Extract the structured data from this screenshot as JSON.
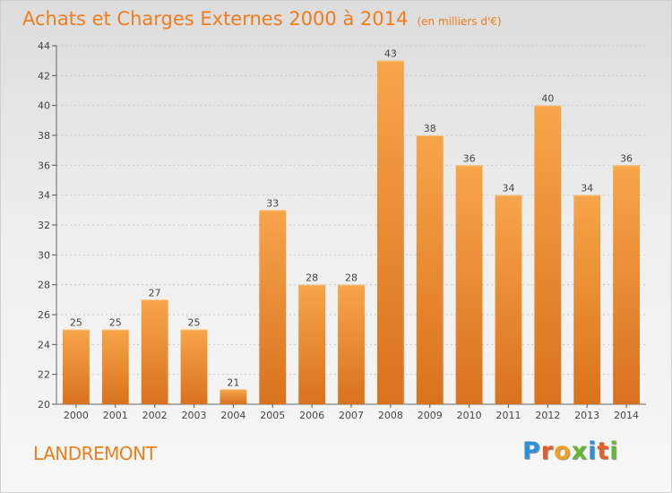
{
  "chart_data": {
    "type": "bar",
    "title": "Achats et Charges Externes 2000 à 2014",
    "subtitle": "(en milliers d'€)",
    "categories": [
      "2000",
      "2001",
      "2002",
      "2003",
      "2004",
      "2005",
      "2006",
      "2007",
      "2008",
      "2009",
      "2010",
      "2011",
      "2012",
      "2013",
      "2014"
    ],
    "values": [
      25,
      25,
      27,
      25,
      21,
      33,
      28,
      28,
      43,
      38,
      36,
      34,
      40,
      34,
      36
    ],
    "ylim": [
      20,
      44
    ],
    "yticks": [
      20,
      22,
      24,
      26,
      28,
      30,
      32,
      34,
      36,
      38,
      40,
      42,
      44
    ],
    "grid": true,
    "legend": "none",
    "bar_color": "#f29a3c",
    "bar_color_dark": "#d9721d"
  },
  "footer": {
    "commune": "LANDREMONT"
  },
  "logo": {
    "letters": [
      {
        "char": "P",
        "color": "#2f8fd6"
      },
      {
        "char": "r",
        "color": "#e45d2a"
      },
      {
        "char": "o",
        "color": "#f0a020"
      },
      {
        "char": "x",
        "color": "#62b832"
      },
      {
        "char": "i",
        "color": "#2f8fd6"
      },
      {
        "char": "t",
        "color": "#e45d2a"
      },
      {
        "char": "i",
        "color": "#62b832"
      }
    ]
  }
}
